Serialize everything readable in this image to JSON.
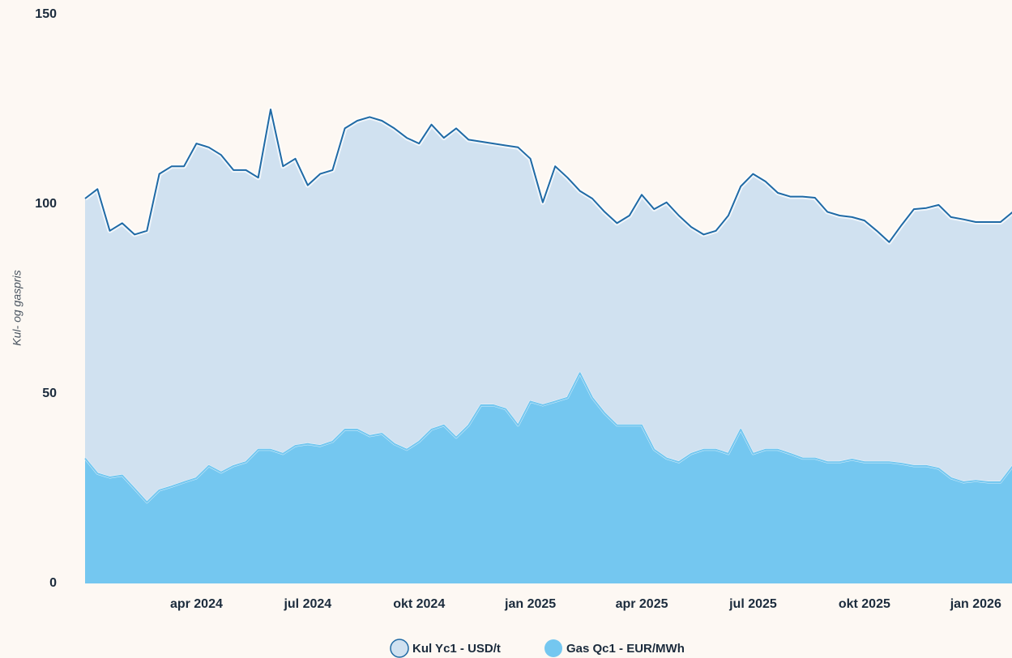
{
  "chart_data": {
    "type": "area",
    "y_label": "Kul- og gaspris",
    "categories": [
      null,
      null,
      null,
      null,
      null,
      null,
      null,
      null,
      null,
      "apr 2024",
      null,
      null,
      null,
      null,
      null,
      null,
      null,
      null,
      "jul 2024",
      null,
      null,
      null,
      null,
      null,
      null,
      null,
      null,
      "okt 2024",
      null,
      null,
      null,
      null,
      null,
      null,
      null,
      null,
      "jan 2025",
      null,
      null,
      null,
      null,
      null,
      null,
      null,
      null,
      "apr 2025",
      null,
      null,
      null,
      null,
      null,
      null,
      null,
      null,
      "jul 2025",
      null,
      null,
      null,
      null,
      null,
      null,
      null,
      null,
      "okt 2025",
      null,
      null,
      null,
      null,
      null,
      null,
      null,
      null,
      "jan 2026",
      null,
      null,
      null
    ],
    "series": [
      {
        "name": "Kul Yc1 - USD/t",
        "color": "#1f6aa5",
        "fill": "#d0e1f0",
        "values": [
          101.5,
          104,
          93,
          95,
          92,
          93,
          108,
          110,
          110,
          116,
          115,
          113,
          109,
          109,
          107,
          125,
          110,
          112,
          105,
          108,
          109,
          120,
          122,
          123,
          122,
          120,
          117.5,
          116,
          121,
          117.5,
          120,
          117,
          116.5,
          116,
          115.5,
          115,
          112,
          100.5,
          110,
          107,
          103.5,
          101.5,
          98,
          95,
          97,
          102.5,
          98.7,
          100.5,
          97,
          94,
          92,
          93,
          97,
          104.7,
          108,
          106,
          103,
          102,
          102,
          101.7,
          98,
          97,
          96.6,
          95.7,
          93,
          90,
          94.5,
          98.7,
          99,
          99.8,
          96.6,
          96,
          95.3,
          95.3,
          95.3,
          98
        ]
      },
      {
        "name": "Gas Qc1 - EUR/MWh",
        "color": "#74c7f0",
        "fill": "#74c7f0",
        "values": [
          33,
          29,
          28,
          28.5,
          25,
          21.4,
          24.6,
          25.6,
          26.7,
          27.8,
          31,
          29.3,
          31,
          32,
          35.3,
          35.3,
          34.2,
          36.3,
          36.8,
          36.3,
          37.4,
          40.6,
          40.6,
          38.9,
          39.5,
          36.8,
          35.3,
          37.4,
          40.6,
          41.7,
          38.5,
          41.7,
          47,
          47,
          46,
          41.7,
          48,
          47,
          48,
          49,
          55.5,
          49,
          44.9,
          41.7,
          41.7,
          41.7,
          35.3,
          33,
          32,
          34.2,
          35.3,
          35.3,
          34.2,
          40.6,
          34.2,
          35.3,
          35.3,
          34.2,
          33,
          33,
          32,
          32,
          32.7,
          32,
          32,
          32,
          31.6,
          31,
          31,
          30.3,
          27.8,
          26.7,
          27.1,
          26.7,
          26.7,
          31
        ]
      }
    ],
    "ylim": [
      0,
      150
    ],
    "yticks": [
      0,
      50,
      100,
      150
    ],
    "grid": false
  }
}
